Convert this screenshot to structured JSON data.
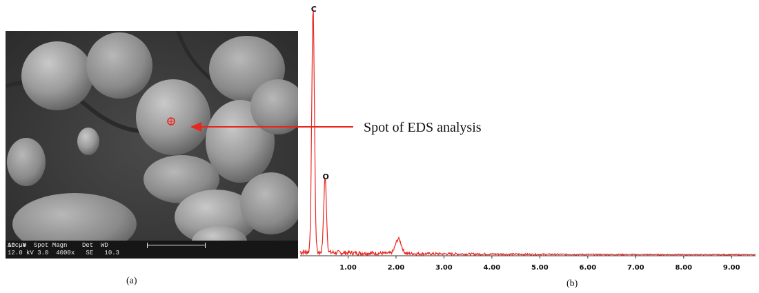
{
  "panel_a": {
    "caption": "(a)",
    "info_bar": {
      "row1": "Acc.V  Spot Magn    Det  WD",
      "row2": "12.0 kV 3.0  4000x   SE   10.3",
      "scale_label": "10 µm"
    },
    "annotation": "Spot of EDS analysis",
    "colors": {
      "arrow": "#e8251f",
      "spot": "#e8251f"
    }
  },
  "panel_b": {
    "caption": "(b)"
  },
  "chart_data": {
    "type": "line",
    "title": "",
    "xlabel": "",
    "ylabel": "",
    "xlim": [
      0,
      9.5
    ],
    "ylim": [
      0,
      100
    ],
    "x_ticks": [
      "1.00",
      "2.00",
      "3.00",
      "4.00",
      "5.00",
      "6.00",
      "7.00",
      "8.00",
      "9.00"
    ],
    "color": "#e8251f",
    "peaks": [
      {
        "label": "C",
        "energy": 0.27,
        "intensity": 100
      },
      {
        "label": "O",
        "energy": 0.52,
        "intensity": 31
      }
    ],
    "minor_peaks": [
      {
        "energy": 2.05,
        "intensity": 6
      }
    ]
  }
}
